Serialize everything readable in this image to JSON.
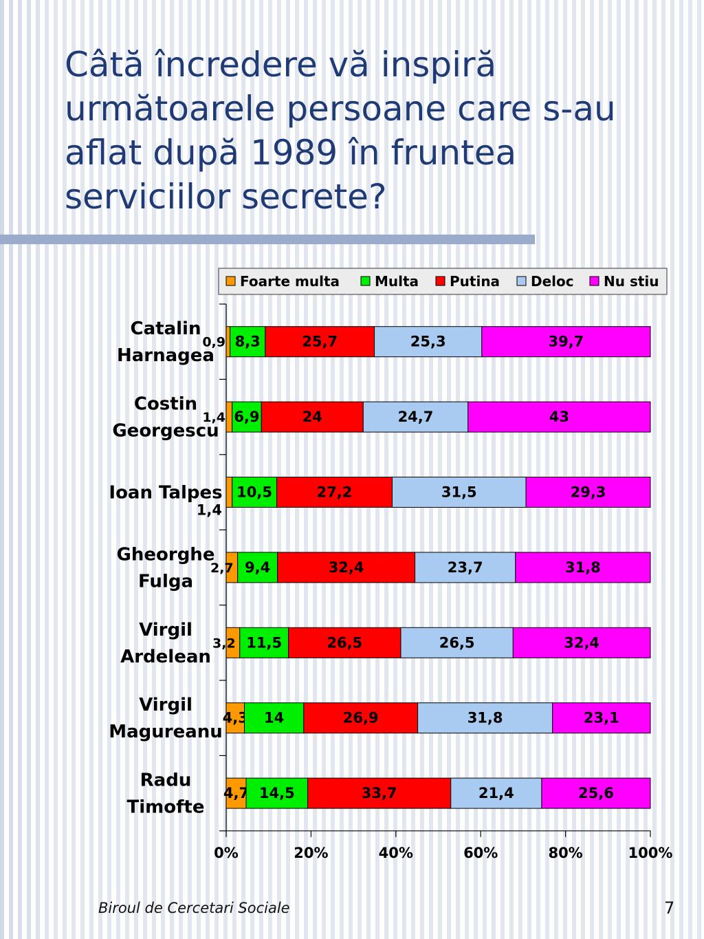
{
  "slide": {
    "title": "Câtă încredere vă inspiră următoarele persoane care s-au aflat după 1989 în fruntea serviciilor secrete?",
    "footer": "Biroul de Cercetari Sociale",
    "page_number": "7"
  },
  "chart_data": {
    "type": "bar",
    "orientation": "horizontal",
    "stacked": "percent",
    "categories": [
      [
        "Catalin",
        "Harnagea"
      ],
      [
        "Costin",
        "Georgescu"
      ],
      [
        "Ioan Talpes"
      ],
      [
        "Gheorghe",
        "Fulga"
      ],
      [
        "Virgil",
        "Ardelean"
      ],
      [
        "Virgil",
        "Magureanu"
      ],
      [
        "Radu",
        "Timofte"
      ]
    ],
    "series": [
      {
        "name": "Foarte multa",
        "color": "#ff9900",
        "values": [
          0.9,
          1.4,
          1.4,
          2.7,
          3.2,
          4.3,
          4.7
        ],
        "labels": [
          "0,9",
          "1,4",
          "1,4",
          "2,7",
          "3,2",
          "4,3",
          "4,7"
        ]
      },
      {
        "name": "Multa",
        "color": "#00ee00",
        "values": [
          8.3,
          6.9,
          10.5,
          9.4,
          11.5,
          14,
          14.5
        ],
        "labels": [
          "8,3",
          "6,9",
          "10,5",
          "9,4",
          "11,5",
          "14",
          "14,5"
        ]
      },
      {
        "name": "Putina",
        "color": "#ff0000",
        "values": [
          25.7,
          24,
          27.2,
          32.4,
          26.5,
          26.9,
          33.7
        ],
        "labels": [
          "25,7",
          "24",
          "27,2",
          "32,4",
          "26,5",
          "26,9",
          "33,7"
        ]
      },
      {
        "name": "Deloc",
        "color": "#a9cbf2",
        "values": [
          25.3,
          24.7,
          31.5,
          23.7,
          26.5,
          31.8,
          21.4
        ],
        "labels": [
          "25,3",
          "24,7",
          "31,5",
          "23,7",
          "26,5",
          "31,8",
          "21,4"
        ]
      },
      {
        "name": "Nu stiu",
        "color": "#ff00ff",
        "values": [
          39.7,
          43,
          29.3,
          31.8,
          32.4,
          23.1,
          25.6
        ],
        "labels": [
          "39,7",
          "43",
          "29,3",
          "31,8",
          "32,4",
          "23,1",
          "25,6"
        ]
      }
    ],
    "x_ticks": [
      "0%",
      "20%",
      "40%",
      "60%",
      "80%",
      "100%"
    ],
    "xlim": [
      0,
      100
    ],
    "legend_position": "top",
    "grid": false
  }
}
